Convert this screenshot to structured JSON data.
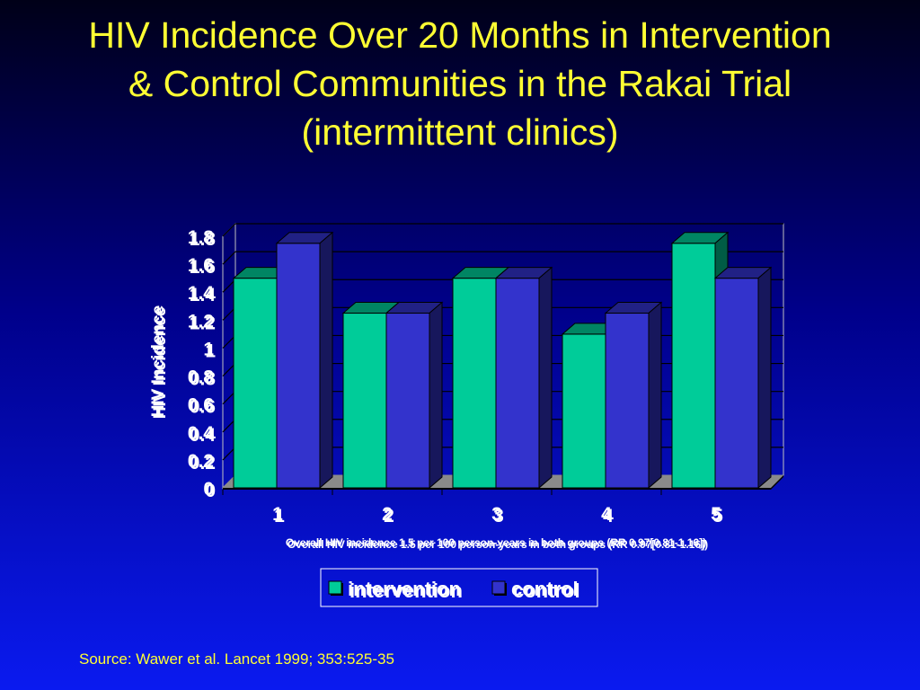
{
  "title": {
    "line1": "HIV Incidence Over 20 Months in Intervention",
    "line2": "& Control Communities in the Rakai Trial",
    "line3": "(intermittent clinics)"
  },
  "chart_data": {
    "type": "bar",
    "categories": [
      "1",
      "2",
      "3",
      "4",
      "5"
    ],
    "series": [
      {
        "name": "intervention",
        "values": [
          1.5,
          1.25,
          1.5,
          1.1,
          1.75
        ],
        "color": "#00cc99"
      },
      {
        "name": "control",
        "values": [
          1.75,
          1.25,
          1.5,
          1.25,
          1.5
        ],
        "color": "#3333cc"
      }
    ],
    "title": "",
    "xlabel": "",
    "ylabel": "HIV Incidence",
    "ylim": [
      0,
      1.8
    ],
    "yticks": [
      "0",
      "0.2",
      "0.4",
      "0.6",
      "0.8",
      "1",
      "1.2",
      "1.4",
      "1.6",
      "1.8"
    ],
    "grid": true,
    "three_d": true,
    "legend_position": "bottom-center",
    "annotation": "Overall HIV incidence 1.5 per 100 person-years in both groups (RR 0.97[0.81-1.16])"
  },
  "source": "Source:  Wawer et al. Lancet 1999; 353:525-35"
}
